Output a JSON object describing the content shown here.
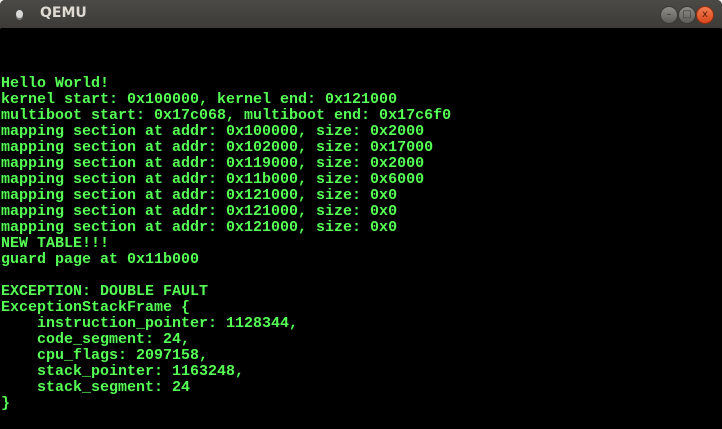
{
  "window": {
    "title": "QEMU",
    "buttons": {
      "minimize": "–",
      "maximize": "□",
      "close": "x"
    },
    "close_color": "#e95420"
  },
  "terminal": {
    "text_color": "#55ff55",
    "background": "#000000",
    "lines": [
      "",
      "",
      "",
      "Hello World!",
      "kernel start: 0x100000, kernel end: 0x121000",
      "multiboot start: 0x17c068, multiboot end: 0x17c6f0",
      "mapping section at addr: 0x100000, size: 0x2000",
      "mapping section at addr: 0x102000, size: 0x17000",
      "mapping section at addr: 0x119000, size: 0x2000",
      "mapping section at addr: 0x11b000, size: 0x6000",
      "mapping section at addr: 0x121000, size: 0x0",
      "mapping section at addr: 0x121000, size: 0x0",
      "mapping section at addr: 0x121000, size: 0x0",
      "NEW TABLE!!!",
      "guard page at 0x11b000",
      "",
      "EXCEPTION: DOUBLE FAULT",
      "ExceptionStackFrame {",
      "    instruction_pointer: 1128344,",
      "    code_segment: 24,",
      "    cpu_flags: 2097158,",
      "    stack_pointer: 1163248,",
      "    stack_segment: 24",
      "}"
    ]
  }
}
